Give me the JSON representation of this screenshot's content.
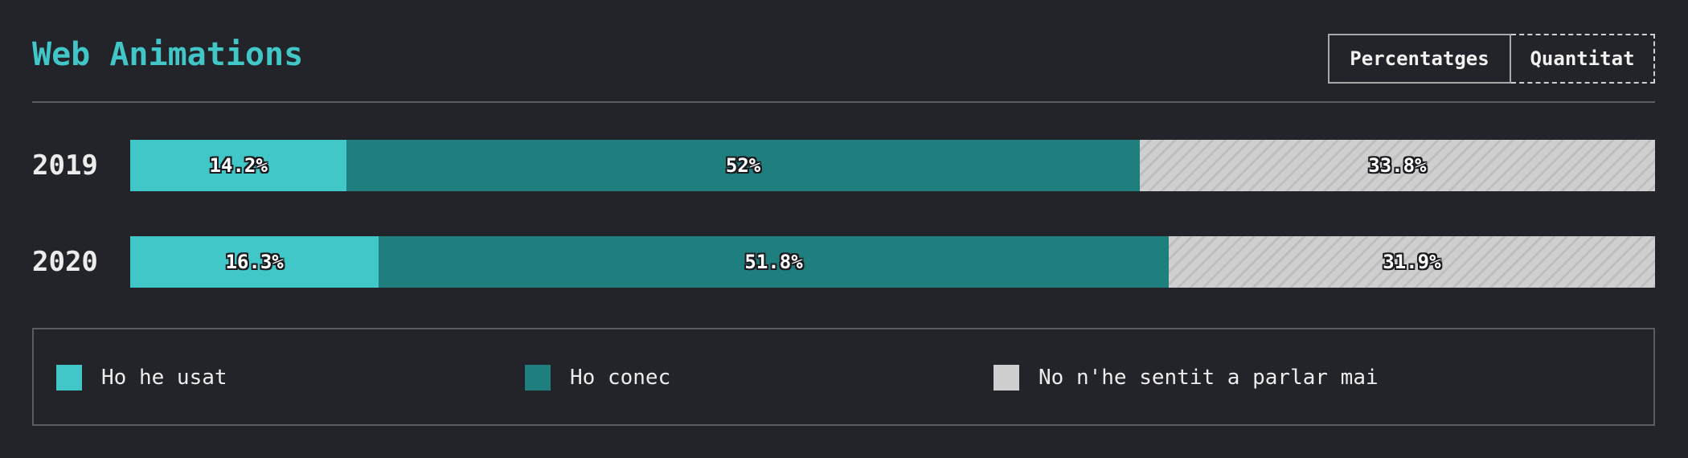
{
  "header": {
    "title": "Web Animations",
    "toggle": {
      "active_label": "Percentatges",
      "inactive_label": "Quantitat"
    }
  },
  "colors": {
    "accent": "#41c7c7",
    "used": "#41c7c7",
    "heard": "#1f7f7f",
    "never": "#cfcfcf",
    "background": "#232429"
  },
  "chart_data": {
    "type": "bar",
    "stacked": true,
    "orientation": "horizontal",
    "title": "Web Animations",
    "categories": [
      "2019",
      "2020"
    ],
    "unit": "%",
    "series": [
      {
        "name": "Ho he usat",
        "values": [
          14.2,
          16.3
        ],
        "labels": [
          "14.2%",
          "16.3%"
        ],
        "color": "#41c7c7",
        "pattern": "solid"
      },
      {
        "name": "Ho conec",
        "values": [
          52,
          51.8
        ],
        "labels": [
          "52%",
          "51.8%"
        ],
        "color": "#1f7f7f",
        "pattern": "solid"
      },
      {
        "name": "No n'he sentit a parlar mai",
        "values": [
          33.8,
          31.9
        ],
        "labels": [
          "33.8%",
          "31.9%"
        ],
        "color": "#cfcfcf",
        "pattern": "hatched"
      }
    ],
    "xlim": [
      0,
      100
    ],
    "legend_position": "bottom"
  },
  "legend": {
    "items": [
      {
        "label": "Ho he usat",
        "color": "#41c7c7"
      },
      {
        "label": "Ho conec",
        "color": "#1f7f7f"
      },
      {
        "label": "No n'he sentit a parlar mai",
        "color": "#cfcfcf"
      }
    ]
  }
}
